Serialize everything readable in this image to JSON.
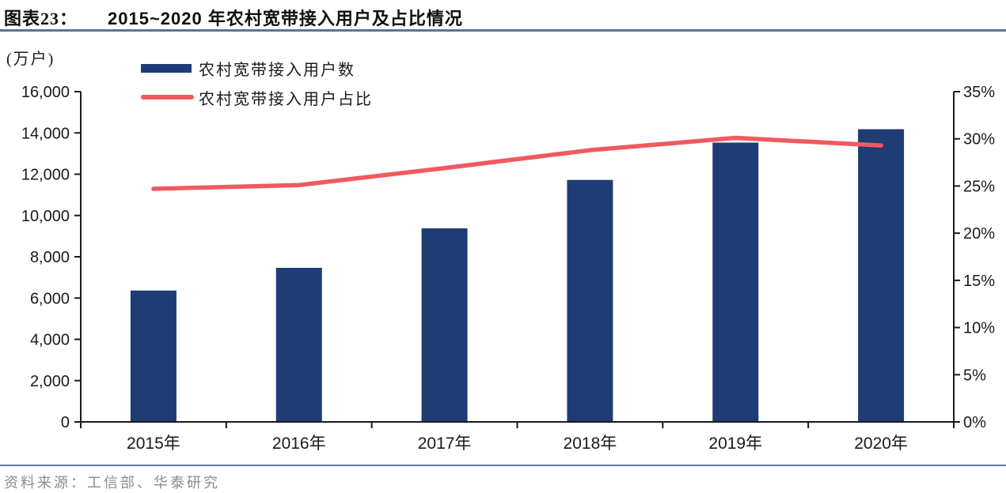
{
  "figure": {
    "label": "图表23：",
    "title": "2015~2020 年农村宽带接入用户及占比情况"
  },
  "unit_label": "(万户)",
  "legend": [
    {
      "swatch": "bar-swatch",
      "label": "农村宽带接入用户数",
      "color": "#1f3c74"
    },
    {
      "swatch": "line-swatch",
      "label": "农村宽带接入用户占比",
      "color": "#f05a5f"
    }
  ],
  "source": "资料来源：工信部、华泰研究",
  "colors": {
    "bar": "#1f3c74",
    "line": "#f05a5f",
    "title_rule": "#53779e",
    "footer_rule": "#5b80a5",
    "axis": "#1a1a1a",
    "tick_label": "#1a1a1a",
    "source_text": "#8c8c8c"
  },
  "chart_data": {
    "type": "bar",
    "subtype": "bar+line dual axis",
    "title": "2015~2020 年农村宽带接入用户及占比情况",
    "categories": [
      "2015年",
      "2016年",
      "2017年",
      "2018年",
      "2019年",
      "2020年"
    ],
    "series": [
      {
        "name": "农村宽带接入用户数",
        "type": "bar",
        "axis": "left",
        "unit": "万户",
        "color": "#1f3c74",
        "values": [
          6364,
          7464,
          9377,
          11724,
          13531,
          14180
        ]
      },
      {
        "name": "农村宽带接入用户占比",
        "type": "line",
        "axis": "right",
        "unit": "%",
        "color": "#f05a5f",
        "values": [
          24.7,
          25.1,
          26.9,
          28.8,
          30.1,
          29.3
        ]
      }
    ],
    "left_axis": {
      "label": "(万户)",
      "min": 0,
      "max": 16000,
      "step": 2000,
      "tick_labels": [
        "0",
        "2,000",
        "4,000",
        "6,000",
        "8,000",
        "10,000",
        "12,000",
        "14,000",
        "16,000"
      ]
    },
    "right_axis": {
      "min": 0,
      "max": 35,
      "step": 5,
      "tick_labels": [
        "0%",
        "5%",
        "10%",
        "15%",
        "20%",
        "25%",
        "30%",
        "35%"
      ]
    },
    "grid": false,
    "legend_position": "top-left"
  }
}
